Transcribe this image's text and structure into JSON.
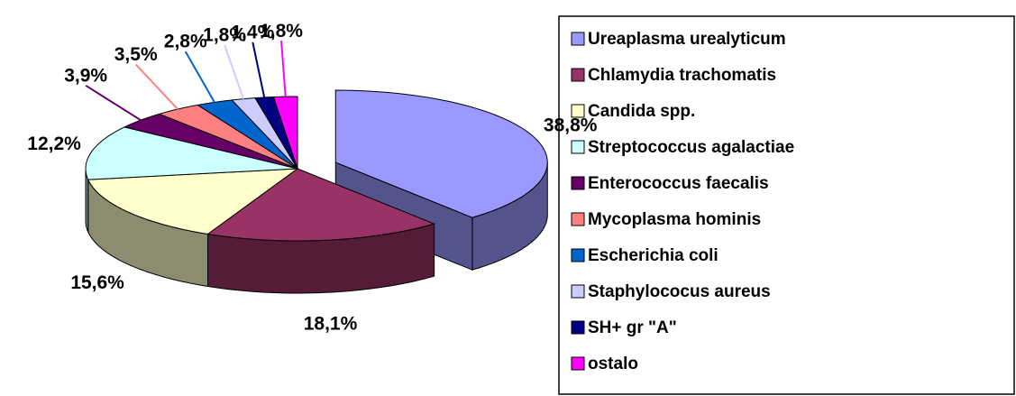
{
  "chart_data": {
    "type": "pie3d",
    "categories": [
      "Ureaplasma urealyticum",
      "Chlamydia trachomatis",
      "Candida spp.",
      "Streptococcus agalactiae",
      "Enterococcus faecalis",
      "Mycoplasma hominis",
      "Escherichia coli",
      "Staphylococus aureus",
      "SH+ gr \"A\"",
      "ostalo"
    ],
    "values": [
      38.8,
      18.1,
      15.6,
      12.2,
      3.9,
      3.5,
      2.8,
      1.8,
      1.4,
      1.8
    ],
    "value_labels": [
      "38,8%",
      "18,1%",
      "15,6%",
      "12,2%",
      "3,9%",
      "3,5%",
      "2,8%",
      "1,8%",
      "1,4%",
      "1,8%"
    ],
    "colors": [
      "#9999ff",
      "#993366",
      "#ffffcc",
      "#ccffff",
      "#660066",
      "#ff8080",
      "#0066cc",
      "#ccccff",
      "#000080",
      "#ff00ff"
    ],
    "legend": "right"
  }
}
